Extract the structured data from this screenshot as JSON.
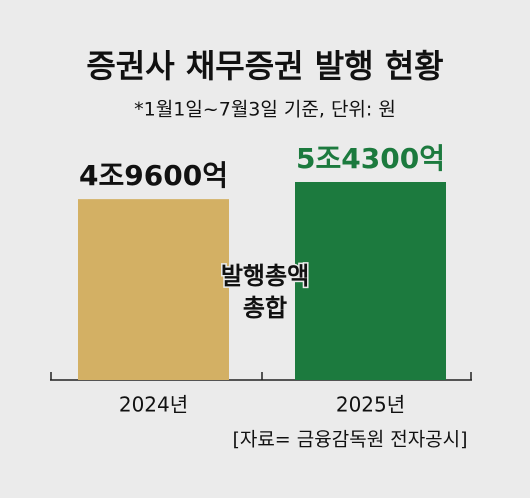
{
  "chart_data": {
    "type": "bar",
    "title": "증권사 채무증권 발행 현황",
    "subtitle": "*1월1일~7월3일 기준, 단위: 원",
    "categories": [
      "2024년",
      "2025년"
    ],
    "values": [
      49600,
      54300
    ],
    "value_labels": [
      "4조9600억",
      "5조4300억"
    ],
    "colors": [
      "#d3b064",
      "#1c7a3e"
    ],
    "value_label_colors": [
      "#111111",
      "#1c7a3e"
    ],
    "annotations": [
      "발행총액",
      "총합"
    ],
    "source": "[자료= 금융감독원 전자공시]"
  }
}
